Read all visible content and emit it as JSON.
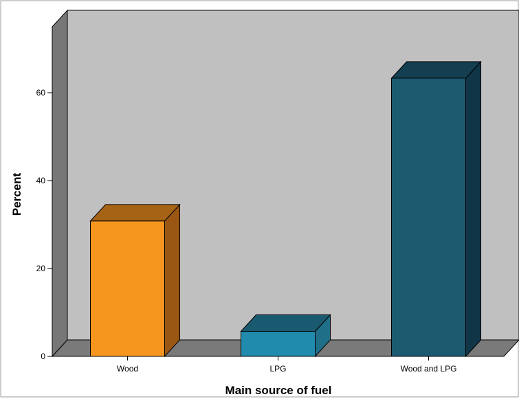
{
  "chart_data": {
    "type": "bar",
    "title": "",
    "xlabel": "Main source of fuel",
    "ylabel": "Percent",
    "categories": [
      "Wood",
      "LPG",
      "Wood and LPG"
    ],
    "values": [
      30.8,
      5.7,
      63.3
    ],
    "ylim": [
      0,
      75
    ],
    "yticks": [
      0,
      20,
      40,
      60
    ],
    "grid": false,
    "legend": "none",
    "colors": {
      "bars": [
        "#F7961E",
        "#218BAE",
        "#1C5A70"
      ],
      "bar_side": [
        "#9A5714",
        "#1F6F88",
        "#103546"
      ],
      "bar_top": [
        "#A76315",
        "#1A5A70",
        "#133F50"
      ],
      "back_wall": "#C0C0C0",
      "side_wall": "#777777",
      "floor": "#7A7A7A",
      "frame_border": "#999999"
    }
  }
}
